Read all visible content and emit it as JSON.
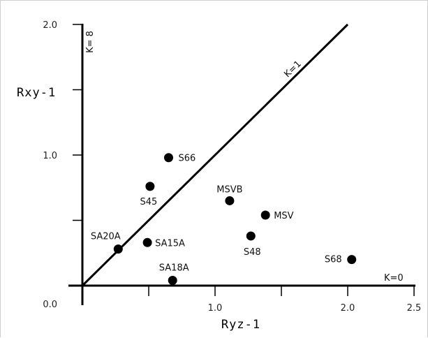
{
  "chart_data": {
    "type": "scatter",
    "title": "",
    "xlabel": "Ryz-1",
    "ylabel": "Rxy-1",
    "xlim": [
      0,
      2.5
    ],
    "ylim": [
      0,
      2.0
    ],
    "x_ticks": [
      0.5,
      1.0,
      1.5,
      2.0,
      2.5
    ],
    "x_tick_labels": [
      {
        "value": 1.0,
        "label": "1.0"
      },
      {
        "value": 2.0,
        "label": "2.0"
      },
      {
        "value": 2.5,
        "label": "2.5"
      }
    ],
    "y_ticks": [
      0.5,
      1.0,
      1.5,
      2.0
    ],
    "y_tick_labels": [
      {
        "value": 1.0,
        "label": "1.0"
      },
      {
        "value": 2.0,
        "label": "2.0"
      }
    ],
    "origin_label": "0.0",
    "grid": false,
    "points": [
      {
        "label": "S66",
        "x": 0.65,
        "y": 0.98
      },
      {
        "label": "S45",
        "x": 0.51,
        "y": 0.76
      },
      {
        "label": "MSVB",
        "x": 1.11,
        "y": 0.65
      },
      {
        "label": "MSV",
        "x": 1.38,
        "y": 0.54
      },
      {
        "label": "S48",
        "x": 1.27,
        "y": 0.38
      },
      {
        "label": "SA20A",
        "x": 0.27,
        "y": 0.28
      },
      {
        "label": "SA15A",
        "x": 0.49,
        "y": 0.33
      },
      {
        "label": "SA18A",
        "x": 0.68,
        "y": 0.04
      },
      {
        "label": "S68",
        "x": 2.03,
        "y": 0.2
      }
    ],
    "reference_lines": [
      {
        "label": "K=1",
        "from": [
          0,
          0
        ],
        "to": [
          2.0,
          2.0
        ]
      },
      {
        "label": "K=0",
        "along": "x-axis"
      },
      {
        "label": "K= 8",
        "along": "y-axis"
      }
    ]
  }
}
